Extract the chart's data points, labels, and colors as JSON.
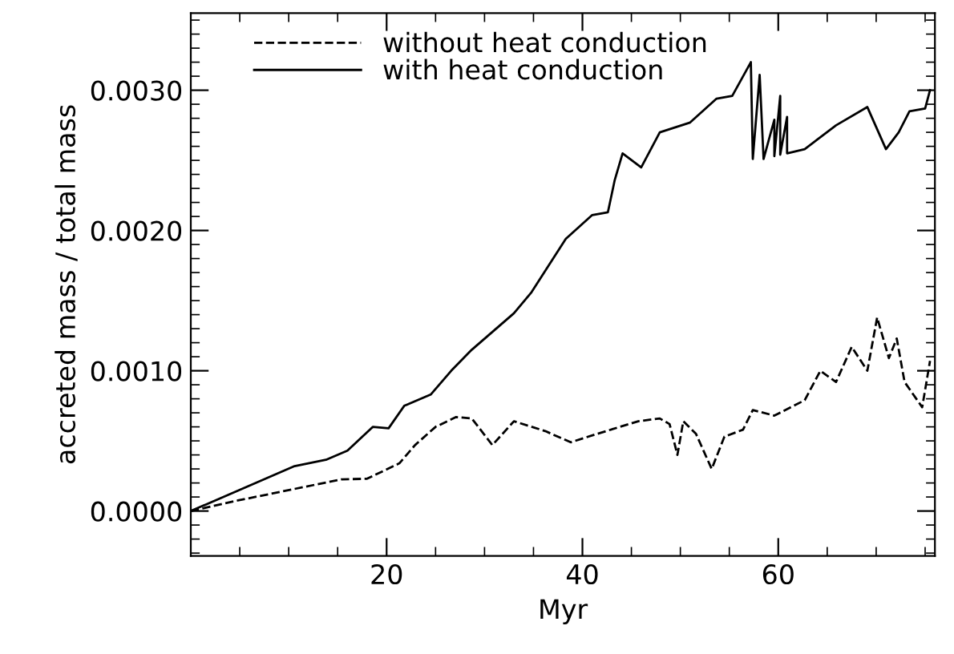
{
  "chart_data": {
    "type": "line",
    "xlabel": "Myr",
    "ylabel": "accreted mass / total mass",
    "xlim": [
      0,
      76
    ],
    "ylim": [
      -0.00032,
      0.00355
    ],
    "xticks": [
      20,
      40,
      60
    ],
    "yticks": [
      {
        "value": 0,
        "label": "0.0000"
      },
      {
        "value": 0.001,
        "label": "0.0010"
      },
      {
        "value": 0.002,
        "label": "0.0020"
      },
      {
        "value": 0.003,
        "label": "0.0030"
      }
    ],
    "grid": false,
    "legend": "top left",
    "marker": "none",
    "series": [
      {
        "name": "without heat conduction",
        "color": "#000000",
        "line_style": "dashed",
        "x": [
          0,
          4.8,
          15.4,
          18,
          21.3,
          22.9,
          25,
          27.1,
          28.7,
          30.8,
          33,
          36.2,
          38.8,
          41.5,
          45.7,
          47.9,
          48.9,
          49.7,
          50.3,
          51.6,
          53.2,
          54.5,
          56.4,
          57.4,
          59.6,
          62.7,
          64.3,
          65.9,
          67.5,
          69.1,
          70.1,
          71.3,
          72.1,
          72.9,
          74.7,
          75.5
        ],
        "values": [
          0,
          7.5e-05,
          0.000226,
          0.00023,
          0.00034,
          0.00047,
          0.0006,
          0.00067,
          0.00066,
          0.00047,
          0.00064,
          0.00057,
          0.00049,
          0.00055,
          0.00064,
          0.00066,
          0.00062,
          0.0004,
          0.00064,
          0.00055,
          0.0003,
          0.00053,
          0.00058,
          0.00072,
          0.00068,
          0.00079,
          0.001,
          0.00092,
          0.00117,
          0.001,
          0.00138,
          0.00109,
          0.00123,
          0.00092,
          0.00074,
          0.00107
        ]
      },
      {
        "name": "with heat conduction",
        "color": "#000000",
        "line_style": "solid",
        "x": [
          0,
          10.6,
          13.8,
          16,
          18.6,
          20.2,
          21.8,
          24.5,
          26.6,
          28.7,
          33,
          34.8,
          38.3,
          41,
          42.6,
          43.3,
          44.1,
          46,
          47.9,
          51,
          53.7,
          55.3,
          57.2,
          57.4,
          58.1,
          58.5,
          59.6,
          59.6,
          60.2,
          60.2,
          60.9,
          60.9,
          62.7,
          65.9,
          69.1,
          71,
          72.3,
          73.4,
          75,
          75.5
        ],
        "values": [
          0,
          0.00032,
          0.000365,
          0.00043,
          0.0006,
          0.00059,
          0.00075,
          0.00083,
          0.001,
          0.00115,
          0.00141,
          0.00156,
          0.00194,
          0.00211,
          0.00213,
          0.00236,
          0.00255,
          0.00245,
          0.0027,
          0.00277,
          0.00294,
          0.00296,
          0.0032,
          0.00251,
          0.00311,
          0.00251,
          0.00279,
          0.00253,
          0.00296,
          0.00254,
          0.00281,
          0.00255,
          0.00258,
          0.00275,
          0.00288,
          0.00258,
          0.0027,
          0.00285,
          0.00287,
          0.003
        ]
      }
    ]
  }
}
